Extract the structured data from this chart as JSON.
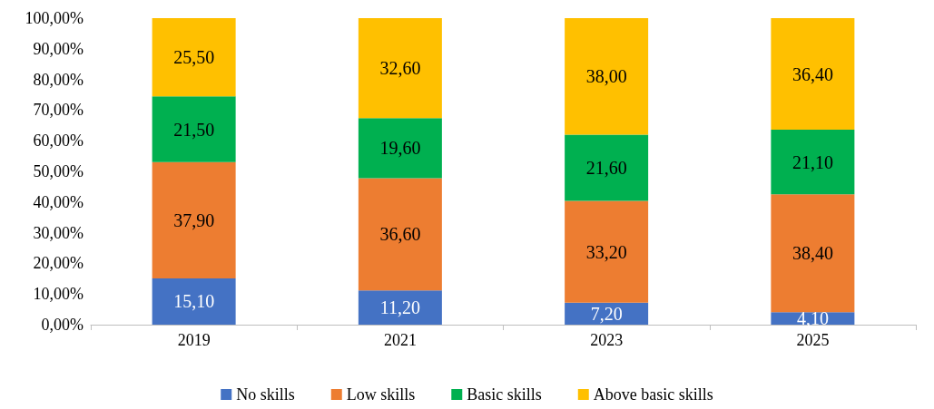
{
  "chart_data": {
    "type": "bar",
    "stacked": true,
    "categories": [
      "2019",
      "2021",
      "2023",
      "2025"
    ],
    "series": [
      {
        "name": "No skills",
        "color": "#4472c4",
        "values": [
          15.1,
          11.2,
          7.2,
          4.1
        ],
        "value_labels": [
          "15,10",
          "11,20",
          "7,20",
          "4,10"
        ]
      },
      {
        "name": "Low skills",
        "color": "#ed7d31",
        "values": [
          37.9,
          36.6,
          33.2,
          38.4
        ],
        "value_labels": [
          "37,90",
          "36,60",
          "33,20",
          "38,40"
        ]
      },
      {
        "name": "Basic skills",
        "color": "#00b050",
        "values": [
          21.5,
          19.6,
          21.6,
          21.1
        ],
        "value_labels": [
          "21,50",
          "19,60",
          "21,60",
          "21,10"
        ]
      },
      {
        "name": "Above basic skills",
        "color": "#ffc000",
        "values": [
          25.5,
          32.6,
          38.0,
          36.4
        ],
        "value_labels": [
          "25,50",
          "32,60",
          "38,00",
          "36,40"
        ]
      }
    ],
    "ylim": [
      0,
      100
    ],
    "yticks": [
      {
        "value": 0,
        "label": "0,00%"
      },
      {
        "value": 10,
        "label": "10,00%"
      },
      {
        "value": 20,
        "label": "20,00%"
      },
      {
        "value": 30,
        "label": "30,00%"
      },
      {
        "value": 40,
        "label": "40,00%"
      },
      {
        "value": 50,
        "label": "50,00%"
      },
      {
        "value": 60,
        "label": "60,00%"
      },
      {
        "value": 70,
        "label": "70,00%"
      },
      {
        "value": 80,
        "label": "80,00%"
      },
      {
        "value": 90,
        "label": "90,00%"
      },
      {
        "value": 100,
        "label": "100,00%"
      }
    ],
    "grid": false,
    "legend": "bottom"
  }
}
